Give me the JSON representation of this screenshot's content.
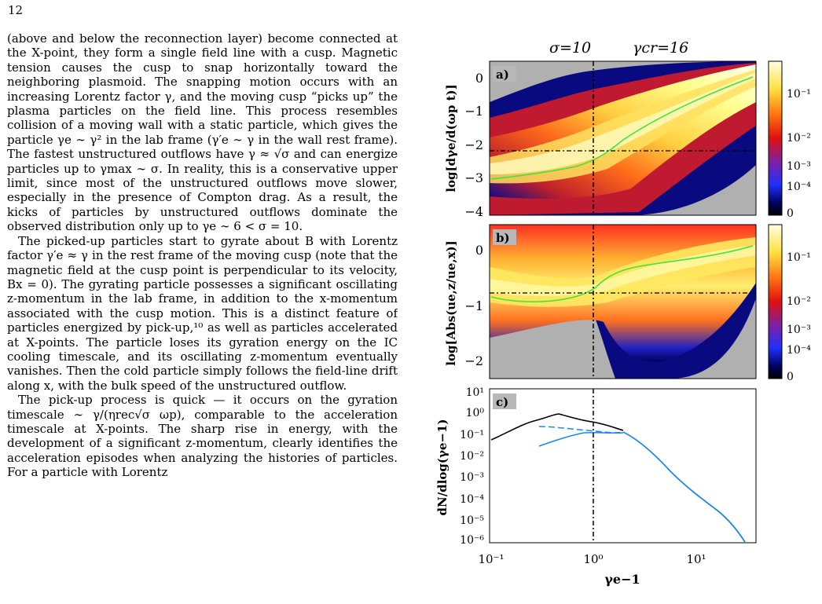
{
  "page": {
    "number": "12"
  },
  "text": {
    "paragraphs": [
      "(above and below the reconnection layer) become connected at the X-point, they form a single field line with a cusp. Magnetic tension causes the cusp to snap horizontally toward the neighboring plasmoid. The snapping motion occurs with an increasing Lorentz factor γ, and the moving cusp “picks up” the plasma particles on the field line. This process resembles collision of a moving wall with a static particle, which gives the particle γe ∼ γ² in the lab frame (γ′e ∼ γ in the wall rest frame). The fastest unstructured outflows have γ ≈ √σ and can energize particles up to γmax ∼ σ. In reality, this is a conservative upper limit, since most of the unstructured outflows move slower, especially in the presence of Compton drag. As a result, the kicks of particles by unstructured outflows dominate the observed distribution only up to γe ∼ 6 < σ = 10.",
      "The picked-up particles start to gyrate about B with Lorentz factor γ′e ≈ γ in the rest frame of the moving cusp (note that the magnetic field at the cusp point is perpendicular to its velocity, Bx = 0). The gyrating particle possesses a significant oscillating z-momentum in the lab frame, in addition to the x-momentum associated with the cusp motion. This is a distinct feature of particles energized by pick-up,¹⁰ as well as particles accelerated at X-points. The particle loses its gyration energy on the IC cooling timescale, and its oscillating z-momentum eventually vanishes. Then the cold particle simply follows the field-line drift along x, with the bulk speed of the unstructured outflow.",
      "The pick-up process is quick — it occurs on the gyration timescale ∼ γ/(ηrec√σ ωp), comparable to the acceleration timescale at X-points. The sharp rise in energy, with the development of a significant z-momentum, clearly identifies the acceleration episodes when analyzing the histories of particles. For a particle with Lorentz"
    ]
  },
  "figure": {
    "title_sigma": "σ=10",
    "title_gamma": "γcr=16",
    "panels": [
      {
        "label": "a)",
        "ylabel": "log[dγe/d(ωp t)]",
        "yticks": [
          "0",
          "−1",
          "−2",
          "−3",
          "−4"
        ]
      },
      {
        "label": "b)",
        "ylabel": "log[Abs(ue,z/ue,x)]",
        "yticks": [
          "0",
          "−1",
          "−2"
        ]
      },
      {
        "label": "c)",
        "ylabel": "dN/dlog(γe−1)",
        "yticks": [
          "10¹",
          "10⁰",
          "10⁻¹",
          "10⁻²",
          "10⁻³",
          "10⁻⁴",
          "10⁻⁵",
          "10⁻⁶"
        ]
      }
    ],
    "colorbar_ticks": [
      "10⁻¹",
      "10⁻²",
      "10⁻³",
      "10⁻⁴",
      "0"
    ],
    "xticks": [
      "10⁻¹",
      "10⁰",
      "10¹"
    ],
    "xlabel": "γe−1",
    "colors": {
      "black_curve": "#000000",
      "blue_curve": "#1e88e5",
      "green_line": "#39e639",
      "background": "#b0b0b0"
    }
  }
}
